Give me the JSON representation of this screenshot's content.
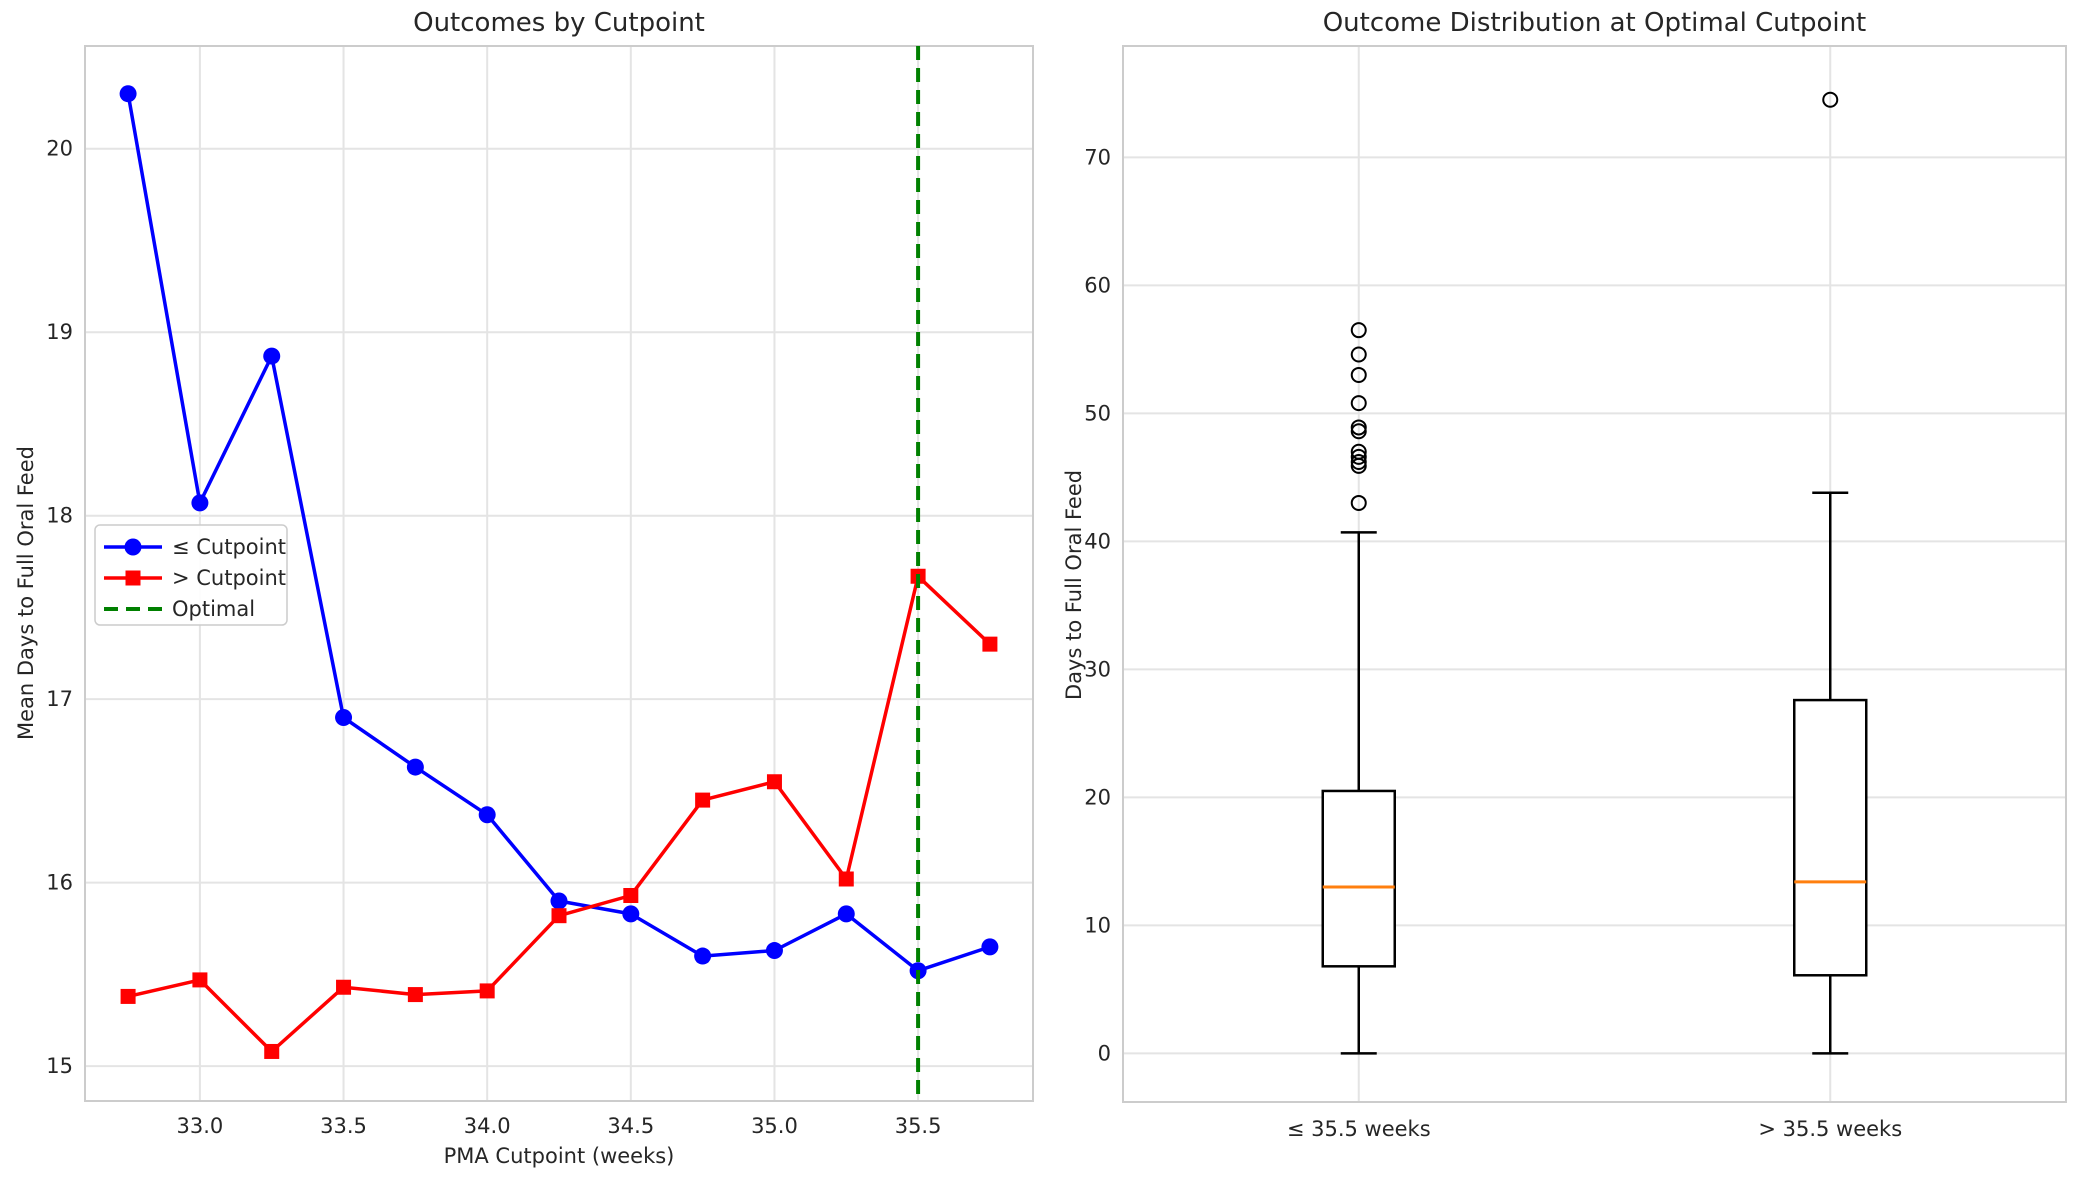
{
  "colors": {
    "blue": "#0000ff",
    "red": "#ff0000",
    "green": "#008000",
    "orange": "#ff7f0e",
    "grid": "#e4e4e4",
    "spine": "#cccccc",
    "text": "#262626"
  },
  "chart_data": [
    {
      "type": "line",
      "title": "Outcomes by Cutpoint",
      "xlabel": "PMA Cutpoint (weeks)",
      "ylabel": "Mean Days to Full Oral Feed",
      "x": [
        32.75,
        33.0,
        33.25,
        33.5,
        33.75,
        34.0,
        34.25,
        34.5,
        34.75,
        35.0,
        35.25,
        35.5,
        35.75
      ],
      "series": [
        {
          "name": "≤ Cutpoint",
          "color": "blue",
          "marker": "circle",
          "values": [
            20.3,
            18.07,
            18.87,
            16.9,
            16.63,
            16.37,
            15.9,
            15.83,
            15.6,
            15.63,
            15.83,
            15.52,
            15.65
          ]
        },
        {
          "name": "> Cutpoint",
          "color": "red",
          "marker": "square",
          "values": [
            15.38,
            15.47,
            15.08,
            15.43,
            15.39,
            15.41,
            15.82,
            15.93,
            16.45,
            16.55,
            16.02,
            17.67,
            17.3
          ]
        }
      ],
      "vline": {
        "x": 35.5,
        "label": "Optimal",
        "color": "green",
        "style": "dashed"
      },
      "xlim": [
        32.6,
        35.9
      ],
      "ylim": [
        14.81,
        20.56
      ],
      "xticks": [
        {
          "v": 33.0,
          "label": "33.0"
        },
        {
          "v": 33.5,
          "label": "33.5"
        },
        {
          "v": 34.0,
          "label": "34.0"
        },
        {
          "v": 34.5,
          "label": "34.5"
        },
        {
          "v": 35.0,
          "label": "35.0"
        },
        {
          "v": 35.5,
          "label": "35.5"
        }
      ],
      "yticks": [
        {
          "v": 15,
          "label": "15"
        },
        {
          "v": 16,
          "label": "16"
        },
        {
          "v": 17,
          "label": "17"
        },
        {
          "v": 18,
          "label": "18"
        },
        {
          "v": 19,
          "label": "19"
        },
        {
          "v": 20,
          "label": "20"
        }
      ],
      "legend": {
        "entries": [
          "≤ Cutpoint",
          "> Cutpoint",
          "Optimal"
        ],
        "position": "center-left"
      },
      "grid": true
    },
    {
      "type": "boxplot",
      "title": "Outcome Distribution at Optimal Cutpoint",
      "xlabel": "",
      "ylabel": "Days to Full Oral Feed",
      "categories": [
        "≤ 35.5 weeks",
        "> 35.5 weeks"
      ],
      "boxes": [
        {
          "label": "≤ 35.5 weeks",
          "q1": 6.8,
          "median": 13.0,
          "q3": 20.5,
          "whisker_low": 0.0,
          "whisker_high": 40.7,
          "outliers": [
            43.0,
            45.9,
            46.2,
            46.6,
            47.0,
            48.6,
            48.9,
            50.8,
            53.0,
            54.6,
            56.5
          ]
        },
        {
          "label": "> 35.5 weeks",
          "q1": 6.1,
          "median": 13.4,
          "q3": 27.6,
          "whisker_low": 0.0,
          "whisker_high": 43.8,
          "outliers": [
            74.5
          ]
        }
      ],
      "median_color": "orange",
      "ylim": [
        -3.8,
        78.7
      ],
      "yticks": [
        {
          "v": 0,
          "label": "0"
        },
        {
          "v": 10,
          "label": "10"
        },
        {
          "v": 20,
          "label": "20"
        },
        {
          "v": 30,
          "label": "30"
        },
        {
          "v": 40,
          "label": "40"
        },
        {
          "v": 50,
          "label": "50"
        },
        {
          "v": 60,
          "label": "60"
        },
        {
          "v": 70,
          "label": "70"
        }
      ],
      "grid": true
    }
  ]
}
